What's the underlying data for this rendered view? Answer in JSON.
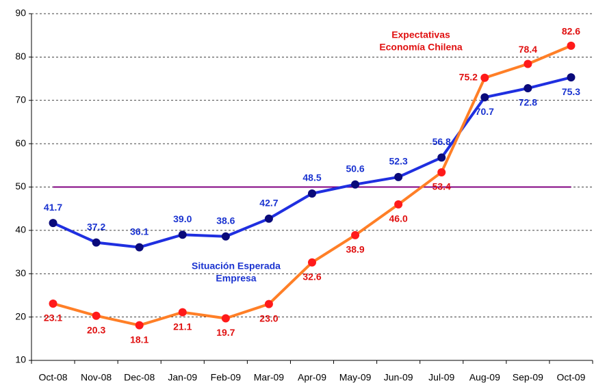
{
  "chart_data": {
    "type": "line",
    "categories": [
      "Oct-08",
      "Nov-08",
      "Dec-08",
      "Jan-09",
      "Feb-09",
      "Mar-09",
      "Apr-09",
      "May-09",
      "Jun-09",
      "Jul-09",
      "Aug-09",
      "Sep-09",
      "Oct-09"
    ],
    "series": [
      {
        "color": "#1f2fe0",
        "marker_color": "#0a0a7a",
        "label_color": "#1a33d0",
        "values": [
          41.7,
          37.2,
          36.1,
          39.0,
          38.6,
          42.7,
          48.5,
          50.6,
          52.3,
          56.8,
          70.7,
          72.8,
          75.3
        ],
        "value_labels": [
          "41.7",
          "37.2",
          "36.1",
          "39.0",
          "38.6",
          "42.7",
          "48.5",
          "50.6",
          "52.3",
          "56.8",
          "70.7",
          "72.8",
          "75.3"
        ]
      },
      {
        "color": "#ff7f27",
        "marker_color": "#ff1a1a",
        "label_color": "#e01010",
        "values": [
          23.1,
          20.3,
          18.1,
          21.1,
          19.7,
          23.0,
          32.6,
          38.9,
          46.0,
          53.4,
          75.2,
          78.4,
          82.6
        ],
        "value_labels": [
          "23.1",
          "20.3",
          "18.1",
          "21.1",
          "19.7",
          "23.0",
          "32.6",
          "38.9",
          "46.0",
          "53.4",
          "75.2",
          "78.4",
          "82.6"
        ]
      }
    ],
    "annotations": [
      {
        "lines": [
          "Situación Esperada",
          "Empresa"
        ],
        "color": "#1a33d0"
      },
      {
        "lines": [
          "Expectativas",
          "Economía Chilena"
        ],
        "color": "#e01010"
      }
    ],
    "reference_line": 50,
    "reference_color": "#800080",
    "ylim": [
      10,
      90
    ],
    "yticks": [
      10,
      20,
      30,
      40,
      50,
      60,
      70,
      80,
      90
    ],
    "grid": true
  }
}
